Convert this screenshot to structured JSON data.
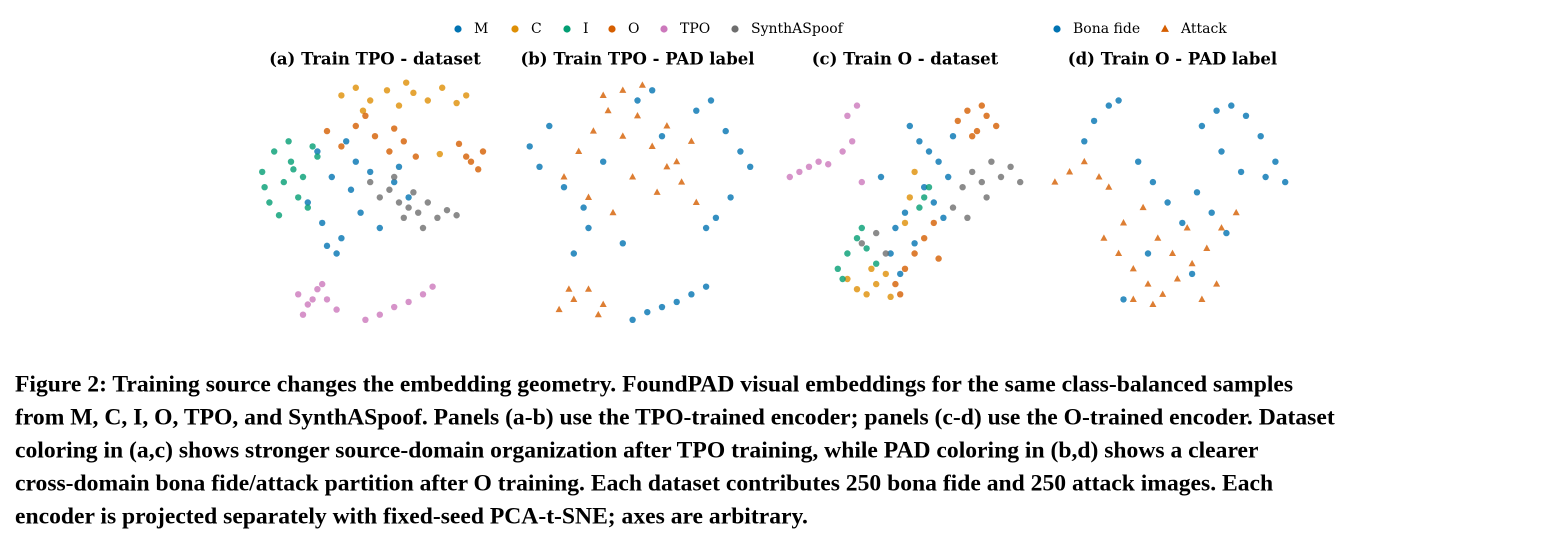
{
  "chart_data": [
    {
      "type": "scatter",
      "title": "(a) Train TPO - dataset",
      "xlim": [
        0,
        100
      ],
      "ylim": [
        0,
        100
      ],
      "series": [
        {
          "name": "M",
          "color": "#0173b2",
          "marker": "circle",
          "x": [
            22,
            28,
            32,
            36,
            40,
            44,
            48,
            52,
            58,
            64,
            30,
            26,
            38,
            34,
            42,
            60
          ],
          "y": [
            50,
            42,
            60,
            36,
            55,
            46,
            62,
            40,
            58,
            52,
            33,
            70,
            74,
            30,
            66,
            64
          ]
        },
        {
          "name": "C",
          "color": "#de8f05",
          "marker": "circle",
          "x": [
            36,
            42,
            48,
            55,
            60,
            66,
            72,
            78,
            84,
            88,
            77,
            45,
            63
          ],
          "y": [
            92,
            95,
            90,
            94,
            88,
            93,
            90,
            95,
            89,
            92,
            69,
            86,
            97
          ]
        },
        {
          "name": "I",
          "color": "#029e73",
          "marker": "circle",
          "x": [
            3,
            8,
            12,
            15,
            20,
            24,
            6,
            18,
            10,
            26,
            14,
            22,
            4,
            16
          ],
          "y": [
            62,
            70,
            58,
            66,
            60,
            72,
            50,
            52,
            45,
            68,
            74,
            48,
            56,
            63
          ]
        },
        {
          "name": "O",
          "color": "#d55e00",
          "marker": "circle",
          "x": [
            30,
            36,
            42,
            50,
            56,
            62,
            67,
            85,
            90,
            95,
            93,
            88,
            46,
            58
          ],
          "y": [
            78,
            72,
            80,
            76,
            70,
            74,
            68,
            73,
            66,
            70,
            63,
            68,
            84,
            79
          ]
        },
        {
          "name": "TPO",
          "color": "#cc78bc",
          "marker": "circle",
          "x": [
            18,
            22,
            26,
            30,
            34,
            20,
            28,
            46,
            52,
            58,
            64,
            70,
            74,
            24
          ],
          "y": [
            14,
            10,
            16,
            12,
            8,
            6,
            18,
            4,
            6,
            9,
            11,
            14,
            17,
            12
          ]
        },
        {
          "name": "SynthASpoof",
          "color": "#6e6e6e",
          "marker": "circle",
          "x": [
            48,
            52,
            56,
            60,
            64,
            68,
            72,
            76,
            80,
            84,
            58,
            70,
            66,
            62
          ],
          "y": [
            58,
            52,
            55,
            50,
            48,
            46,
            50,
            44,
            47,
            45,
            60,
            40,
            54,
            44
          ]
        }
      ]
    },
    {
      "type": "scatter",
      "title": "(b) Train TPO - PAD label",
      "xlim": [
        0,
        100
      ],
      "ylim": [
        0,
        100
      ],
      "series": [
        {
          "name": "Bona fide",
          "color": "#0173b2",
          "marker": "circle",
          "x": [
            10,
            14,
            20,
            6,
            30,
            50,
            56,
            74,
            80,
            86,
            92,
            96,
            88,
            82,
            78,
            60,
            36,
            28,
            44,
            24,
            48,
            54,
            60,
            66,
            72,
            78
          ],
          "y": [
            64,
            80,
            56,
            72,
            40,
            90,
            94,
            86,
            90,
            78,
            70,
            64,
            52,
            44,
            40,
            76,
            66,
            48,
            34,
            30,
            4,
            7,
            9,
            11,
            14,
            17
          ]
        },
        {
          "name": "Attack",
          "color": "#d55e00",
          "marker": "triangle",
          "x": [
            20,
            26,
            32,
            38,
            44,
            50,
            56,
            62,
            68,
            74,
            30,
            40,
            48,
            58,
            66,
            72,
            36,
            52,
            44,
            62,
            18,
            24,
            30,
            36,
            22,
            34
          ],
          "y": [
            60,
            70,
            78,
            86,
            94,
            84,
            72,
            64,
            58,
            50,
            52,
            46,
            60,
            54,
            66,
            74,
            92,
            96,
            76,
            80,
            8,
            12,
            16,
            10,
            16,
            6
          ]
        }
      ]
    },
    {
      "type": "scatter",
      "title": "(c) Train O - dataset",
      "xlim": [
        0,
        100
      ],
      "ylim": [
        0,
        100
      ],
      "series": [
        {
          "name": "M",
          "color": "#0173b2",
          "marker": "circle",
          "x": [
            52,
            56,
            60,
            64,
            68,
            58,
            62,
            50,
            46,
            54,
            66,
            44,
            48,
            70,
            40
          ],
          "y": [
            80,
            74,
            70,
            66,
            60,
            56,
            50,
            46,
            40,
            34,
            44,
            30,
            22,
            76,
            60
          ]
        },
        {
          "name": "C",
          "color": "#de8f05",
          "marker": "circle",
          "x": [
            26,
            30,
            34,
            38,
            42,
            44,
            50,
            52,
            54,
            36
          ],
          "y": [
            20,
            16,
            14,
            18,
            22,
            13,
            42,
            52,
            62,
            24
          ]
        },
        {
          "name": "I",
          "color": "#029e73",
          "marker": "circle",
          "x": [
            22,
            26,
            30,
            34,
            38,
            24,
            32,
            56,
            60,
            58
          ],
          "y": [
            24,
            30,
            36,
            32,
            26,
            20,
            40,
            48,
            56,
            52
          ]
        },
        {
          "name": "O",
          "color": "#d55e00",
          "marker": "circle",
          "x": [
            72,
            76,
            80,
            84,
            88,
            78,
            82,
            46,
            50,
            54,
            58,
            62,
            64,
            48
          ],
          "y": [
            82,
            86,
            78,
            84,
            80,
            76,
            88,
            18,
            24,
            30,
            36,
            42,
            28,
            14
          ]
        },
        {
          "name": "TPO",
          "color": "#cc78bc",
          "marker": "circle",
          "x": [
            2,
            6,
            10,
            14,
            18,
            24,
            28,
            32,
            26,
            30
          ],
          "y": [
            60,
            62,
            64,
            66,
            65,
            70,
            74,
            58,
            84,
            88
          ]
        },
        {
          "name": "SynthASpoof",
          "color": "#6e6e6e",
          "marker": "circle",
          "x": [
            70,
            74,
            78,
            82,
            86,
            90,
            94,
            98,
            76,
            84,
            32,
            38,
            42
          ],
          "y": [
            48,
            56,
            62,
            58,
            66,
            60,
            64,
            58,
            44,
            52,
            34,
            38,
            30
          ]
        }
      ]
    },
    {
      "type": "scatter",
      "title": "(d) Train O - PAD label",
      "xlim": [
        0,
        100
      ],
      "ylim": [
        0,
        100
      ],
      "series": [
        {
          "name": "Bona fide",
          "color": "#0173b2",
          "marker": "circle",
          "x": [
            62,
            68,
            74,
            80,
            86,
            92,
            96,
            70,
            78,
            88,
            14,
            18,
            24,
            28,
            36,
            42,
            48,
            54,
            60,
            66,
            72,
            40,
            58,
            30
          ],
          "y": [
            80,
            86,
            88,
            84,
            76,
            66,
            58,
            70,
            62,
            60,
            74,
            82,
            88,
            90,
            66,
            58,
            50,
            42,
            54,
            46,
            38,
            30,
            22,
            12
          ]
        },
        {
          "name": "Attack",
          "color": "#d55e00",
          "marker": "triangle",
          "x": [
            2,
            8,
            14,
            20,
            24,
            22,
            28,
            34,
            40,
            46,
            52,
            58,
            64,
            70,
            76,
            30,
            38,
            44,
            50,
            56,
            62,
            68,
            34,
            42
          ],
          "y": [
            58,
            62,
            66,
            60,
            56,
            36,
            30,
            24,
            18,
            14,
            20,
            26,
            32,
            40,
            46,
            42,
            48,
            36,
            30,
            40,
            12,
            18,
            12,
            10
          ]
        }
      ]
    }
  ],
  "caption_lines": [
    "Figure 2: Training source changes the embedding geometry. FoundPAD visual embeddings for the same class-balanced samples",
    "from M, C, I, O, TPO, and SynthASpoof. Panels (a-b) use the TPO-trained encoder; panels (c-d) use the O-trained encoder. Dataset",
    "coloring in (a,c) shows stronger source-domain organization after TPO training, while PAD coloring in (b,d) shows a clearer",
    "cross-domain bona fide/attack partition after O training. Each dataset contributes 250 bona fide and 250 attack images. Each",
    "encoder is projected separately with fixed-seed PCA-t-SNE; axes are arbitrary."
  ]
}
